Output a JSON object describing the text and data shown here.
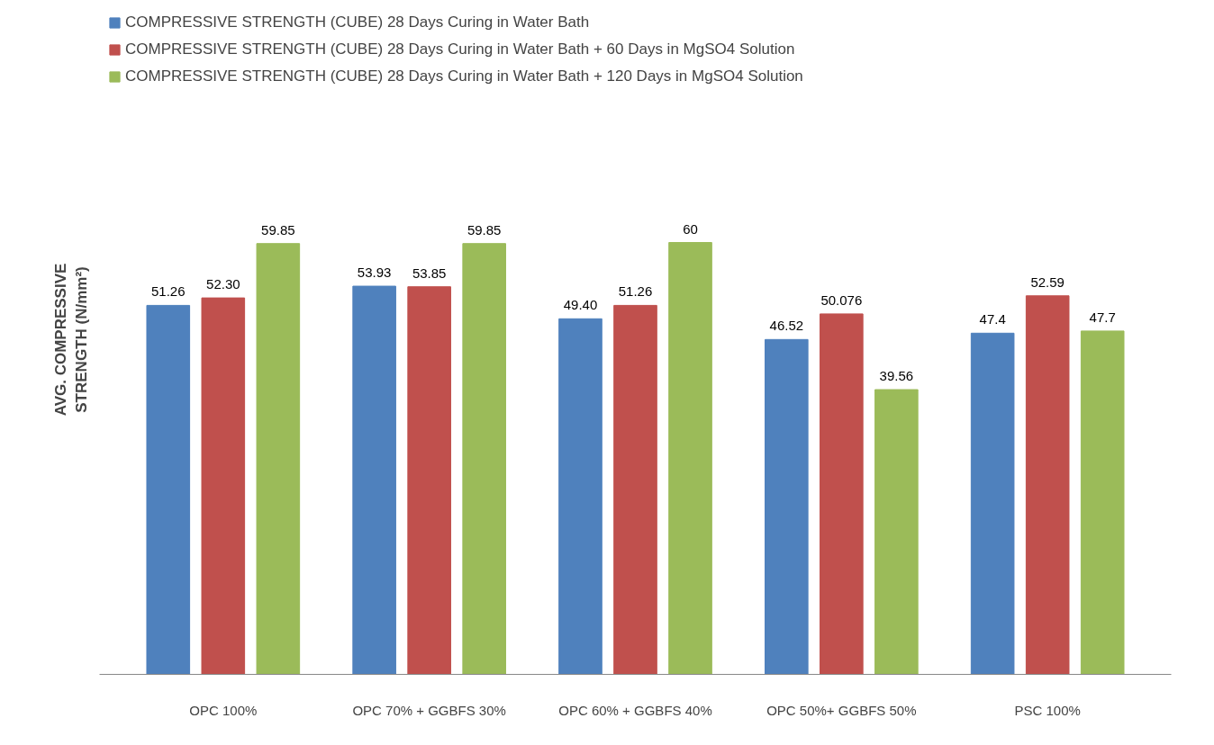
{
  "chart_data": {
    "type": "bar",
    "ylabel": "AVG. COMPRESSIVE\nSTRENGTH (N/mm²)",
    "categories": [
      "OPC 100%",
      "OPC 70% + GGBFS 30%",
      "OPC 60% + GGBFS 40%",
      "OPC 50%+ GGBFS 50%",
      "PSC 100%"
    ],
    "series": [
      {
        "name": "COMPRESSIVE STRENGTH (CUBE) 28 Days Curing in Water Bath",
        "color": "#4f81bd",
        "values": [
          51.26,
          53.93,
          49.4,
          46.52,
          47.4
        ],
        "value_labels": [
          "51.26",
          "53.93",
          "49.40",
          "46.52",
          "47.4"
        ]
      },
      {
        "name": "COMPRESSIVE STRENGTH (CUBE) 28 Days Curing in Water Bath + 60 Days in MgSO4 Solution",
        "color": "#c0504d",
        "values": [
          52.3,
          53.85,
          51.26,
          50.076,
          52.59
        ],
        "value_labels": [
          "52.30",
          "53.85",
          "51.26",
          "50.076",
          "52.59"
        ]
      },
      {
        "name": "COMPRESSIVE STRENGTH (CUBE) 28 Days Curing in Water Bath + 120 Days in MgSO4 Solution",
        "color": "#9bbb59",
        "values": [
          59.85,
          59.85,
          60,
          39.56,
          47.7
        ],
        "value_labels": [
          "59.85",
          "59.85",
          "60",
          "39.56",
          "47.7"
        ]
      }
    ],
    "tick_labels": "x",
    "grid": false,
    "legend": "top left"
  }
}
